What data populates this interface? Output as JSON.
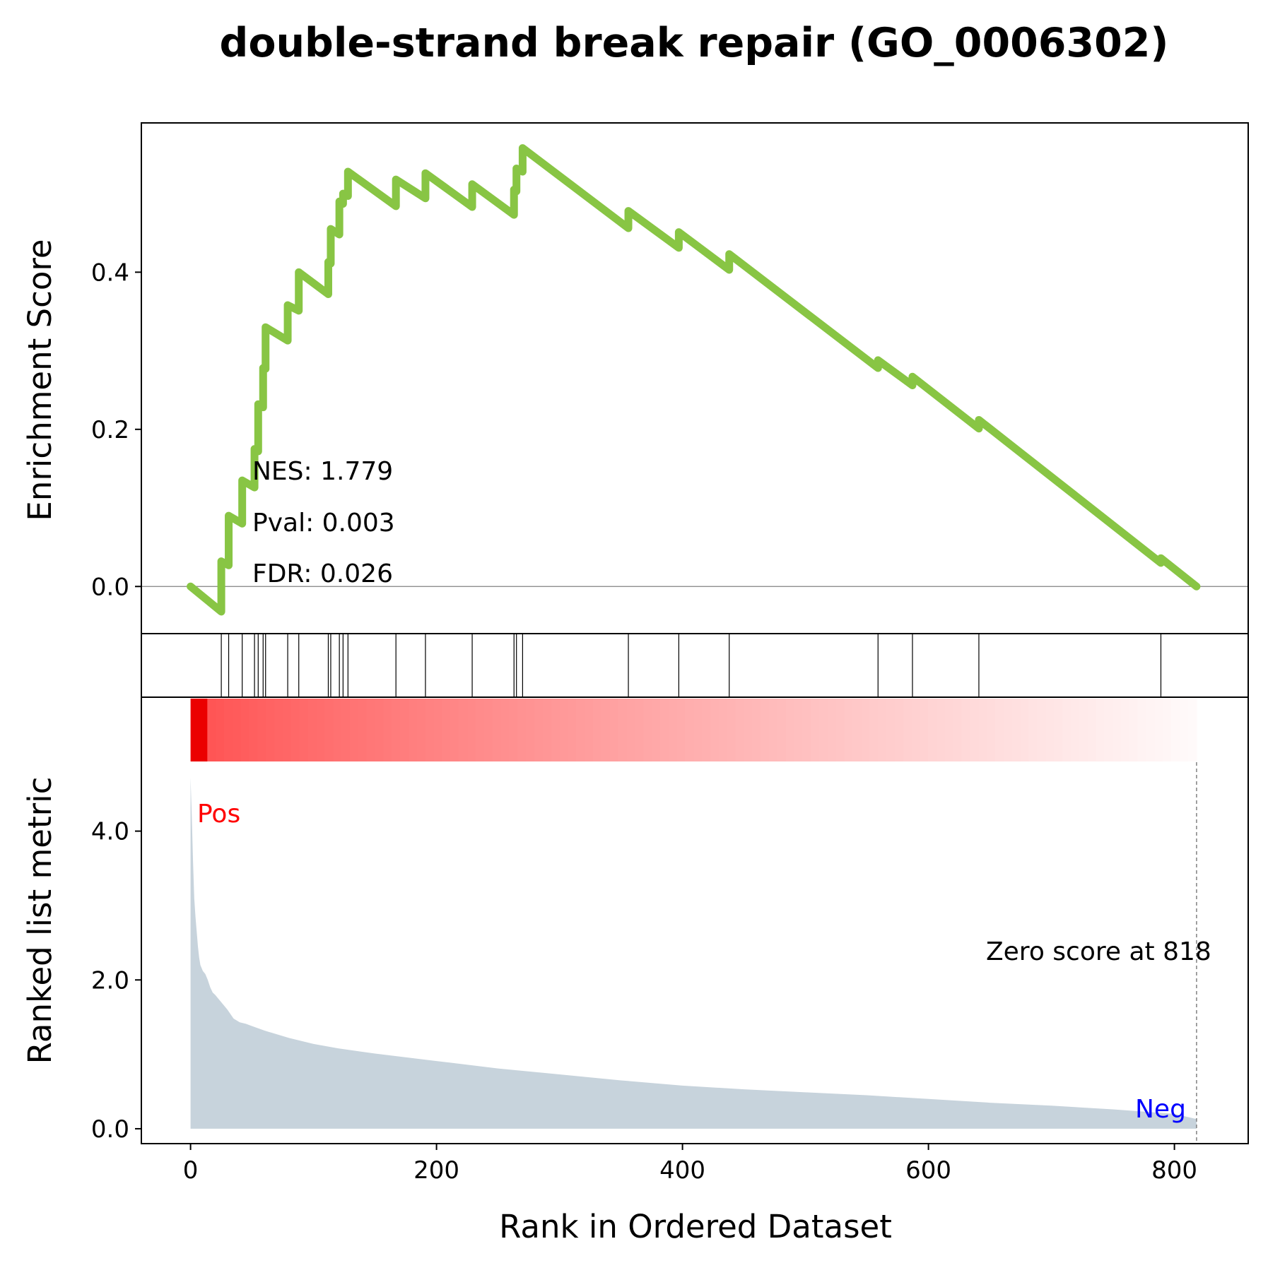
{
  "chart_data": {
    "type": "line",
    "title": "double-strand break repair (GO_0006302)",
    "xlabel": "Rank in Ordered Dataset",
    "ylabel_top": "Enrichment Score",
    "ylabel_bottom": "Ranked list metric",
    "xlim": [
      -40,
      860
    ],
    "xticks": [
      "0",
      "200",
      "400",
      "600",
      "800"
    ],
    "top_ylim": [
      -0.06,
      0.59
    ],
    "top_yticks": [
      "0.0",
      "0.2",
      "0.4"
    ],
    "bottom_ylim": [
      -0.2,
      5.8
    ],
    "bottom_yticks": [
      "0.0",
      "2.0",
      "4.0"
    ],
    "annotations": {
      "nes": "NES: 1.779",
      "pval": "Pval: 0.003",
      "fdr": "FDR: 0.026",
      "zero_score": "Zero score at 818",
      "pos": "Pos",
      "neg": "Neg"
    },
    "colors": {
      "es_line": "#88c544",
      "metric_fill": "#c7d3dc",
      "pos": "#ff0000",
      "neg": "#0000ff"
    },
    "zero_score_rank": 818,
    "total_ranks": 818,
    "hit_ranks": [
      25,
      31,
      42,
      52,
      55,
      59,
      61,
      79,
      88,
      112,
      114,
      121,
      124,
      128,
      167,
      191,
      229,
      263,
      265,
      270,
      356,
      397,
      438,
      559,
      587,
      641,
      789
    ],
    "es_series": {
      "name": "Enrichment Score",
      "x": [
        0,
        25,
        25,
        31,
        31,
        42,
        42,
        52,
        52,
        55,
        55,
        59,
        59,
        61,
        61,
        79,
        79,
        88,
        88,
        112,
        112,
        114,
        114,
        121,
        121,
        124,
        124,
        128,
        128,
        167,
        167,
        191,
        191,
        229,
        229,
        263,
        263,
        265,
        265,
        270,
        270,
        356,
        356,
        397,
        397,
        438,
        438,
        559,
        559,
        587,
        587,
        641,
        641,
        789,
        789,
        818
      ],
      "y": [
        0.0,
        -0.032,
        0.032,
        0.027,
        0.09,
        0.08,
        0.135,
        0.126,
        0.175,
        0.172,
        0.232,
        0.228,
        0.278,
        0.277,
        0.33,
        0.313,
        0.358,
        0.351,
        0.4,
        0.372,
        0.413,
        0.411,
        0.455,
        0.448,
        0.49,
        0.487,
        0.5,
        0.497,
        0.528,
        0.484,
        0.518,
        0.494,
        0.526,
        0.483,
        0.512,
        0.473,
        0.505,
        0.503,
        0.532,
        0.528,
        0.558,
        0.456,
        0.478,
        0.431,
        0.451,
        0.403,
        0.423,
        0.278,
        0.288,
        0.256,
        0.267,
        0.201,
        0.212,
        0.03,
        0.036,
        0.0
      ]
    },
    "metric_series": {
      "name": "Ranked list metric",
      "x": [
        0,
        1,
        2,
        3,
        4,
        5,
        6,
        7,
        8,
        10,
        12,
        14,
        16,
        18,
        20,
        25,
        30,
        35,
        40,
        45,
        50,
        60,
        70,
        80,
        100,
        120,
        150,
        200,
        250,
        300,
        350,
        400,
        450,
        500,
        550,
        600,
        650,
        700,
        750,
        800,
        818
      ],
      "y": [
        4.72,
        4.2,
        3.6,
        3.1,
        2.85,
        2.65,
        2.45,
        2.3,
        2.2,
        2.12,
        2.08,
        2.0,
        1.9,
        1.83,
        1.8,
        1.7,
        1.6,
        1.48,
        1.43,
        1.41,
        1.38,
        1.32,
        1.27,
        1.22,
        1.14,
        1.08,
        1.01,
        0.91,
        0.81,
        0.73,
        0.65,
        0.58,
        0.53,
        0.49,
        0.45,
        0.4,
        0.35,
        0.31,
        0.26,
        0.2,
        0.13
      ]
    }
  }
}
